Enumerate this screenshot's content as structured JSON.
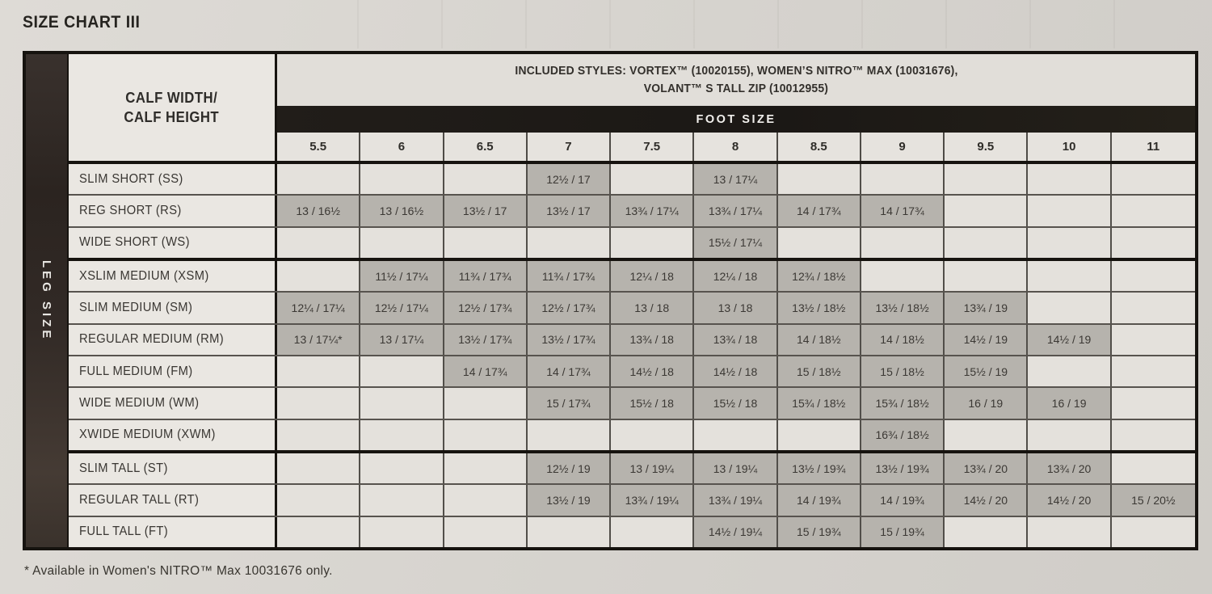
{
  "page": {
    "title": "SIZE CHART III",
    "footnote": "* Available in Women's NITRO™ Max 10031676 only."
  },
  "colors": {
    "filled_cell": "#b6b3ad",
    "empty_cell": "#e4e1dc",
    "label_cell": "#eae7e2",
    "foot_size_bar": "#1b1815",
    "side_strip": "#342c28",
    "page_background": "#d6d3ce"
  },
  "table": {
    "side_label": "LEG SIZE",
    "corner": {
      "line1": "CALF WIDTH/",
      "line2": "CALF HEIGHT"
    },
    "included_styles": {
      "line1": "INCLUDED STYLES: VORTEX™ (10020155), WOMEN’S NITRO™ MAX (10031676),",
      "line2": "VOLANT™ S TALL ZIP (10012955)"
    },
    "foot_size_label": "FOOT SIZE",
    "foot_sizes": [
      "5.5",
      "6",
      "6.5",
      "7",
      "7.5",
      "8",
      "8.5",
      "9",
      "9.5",
      "10",
      "11"
    ],
    "rows": [
      {
        "label": "SLIM SHORT (SS)",
        "group": "short",
        "cells": [
          "",
          "",
          "",
          "12½ / 17",
          "",
          "13 / 17¼",
          "",
          "",
          "",
          "",
          ""
        ]
      },
      {
        "label": "REG SHORT (RS)",
        "group": "short",
        "cells": [
          "13 / 16½",
          "13 / 16½",
          "13½ / 17",
          "13½ / 17",
          "13¾ / 17¼",
          "13¾ / 17¼",
          "14 / 17¾",
          "14 / 17¾",
          "",
          "",
          ""
        ]
      },
      {
        "label": "WIDE SHORT (WS)",
        "group": "short",
        "cells": [
          "",
          "",
          "",
          "",
          "",
          "15½ / 17¼",
          "",
          "",
          "",
          "",
          ""
        ]
      },
      {
        "label": "XSLIM MEDIUM (XSM)",
        "group": "medium",
        "cells": [
          "",
          "11½ / 17¼",
          "11¾ / 17¾",
          "11¾ / 17¾",
          "12¼ / 18",
          "12¼ / 18",
          "12¾ / 18½",
          "",
          "",
          "",
          ""
        ]
      },
      {
        "label": "SLIM MEDIUM (SM)",
        "group": "medium",
        "cells": [
          "12¼ / 17¼",
          "12½ / 17¼",
          "12½ / 17¾",
          "12½ / 17¾",
          "13 / 18",
          "13 / 18",
          "13½ / 18½",
          "13½ / 18½",
          "13¾ / 19",
          "",
          ""
        ]
      },
      {
        "label": "REGULAR MEDIUM (RM)",
        "group": "medium",
        "cells": [
          "13 / 17¼*",
          "13 / 17¼",
          "13½ / 17¾",
          "13½ / 17¾",
          "13¾ / 18",
          "13¾ / 18",
          "14 / 18½",
          "14 / 18½",
          "14½ / 19",
          "14½ / 19",
          ""
        ]
      },
      {
        "label": "FULL MEDIUM (FM)",
        "group": "medium",
        "cells": [
          "",
          "",
          "14 / 17¾",
          "14 / 17¾",
          "14½ / 18",
          "14½ / 18",
          "15 / 18½",
          "15 / 18½",
          "15½ / 19",
          "",
          ""
        ]
      },
      {
        "label": "WIDE MEDIUM (WM)",
        "group": "medium",
        "cells": [
          "",
          "",
          "",
          "15 / 17¾",
          "15½ / 18",
          "15½ / 18",
          "15¾ / 18½",
          "15¾ / 18½",
          "16 / 19",
          "16 / 19",
          ""
        ]
      },
      {
        "label": "XWIDE MEDIUM (XWM)",
        "group": "medium",
        "cells": [
          "",
          "",
          "",
          "",
          "",
          "",
          "",
          "16¾ / 18½",
          "",
          "",
          ""
        ]
      },
      {
        "label": "SLIM TALL (ST)",
        "group": "tall",
        "cells": [
          "",
          "",
          "",
          "12½ / 19",
          "13 / 19¼",
          "13 / 19¼",
          "13½ / 19¾",
          "13½ / 19¾",
          "13¾ / 20",
          "13¾ / 20",
          ""
        ]
      },
      {
        "label": "REGULAR TALL (RT)",
        "group": "tall",
        "cells": [
          "",
          "",
          "",
          "13½ / 19",
          "13¾ / 19¼",
          "13¾ / 19¼",
          "14 / 19¾",
          "14 / 19¾",
          "14½ / 20",
          "14½ / 20",
          "15 / 20½"
        ]
      },
      {
        "label": "FULL TALL (FT)",
        "group": "tall",
        "cells": [
          "",
          "",
          "",
          "",
          "",
          "14½ / 19¼",
          "15 / 19¾",
          "15 / 19¾",
          "",
          "",
          ""
        ]
      }
    ]
  }
}
